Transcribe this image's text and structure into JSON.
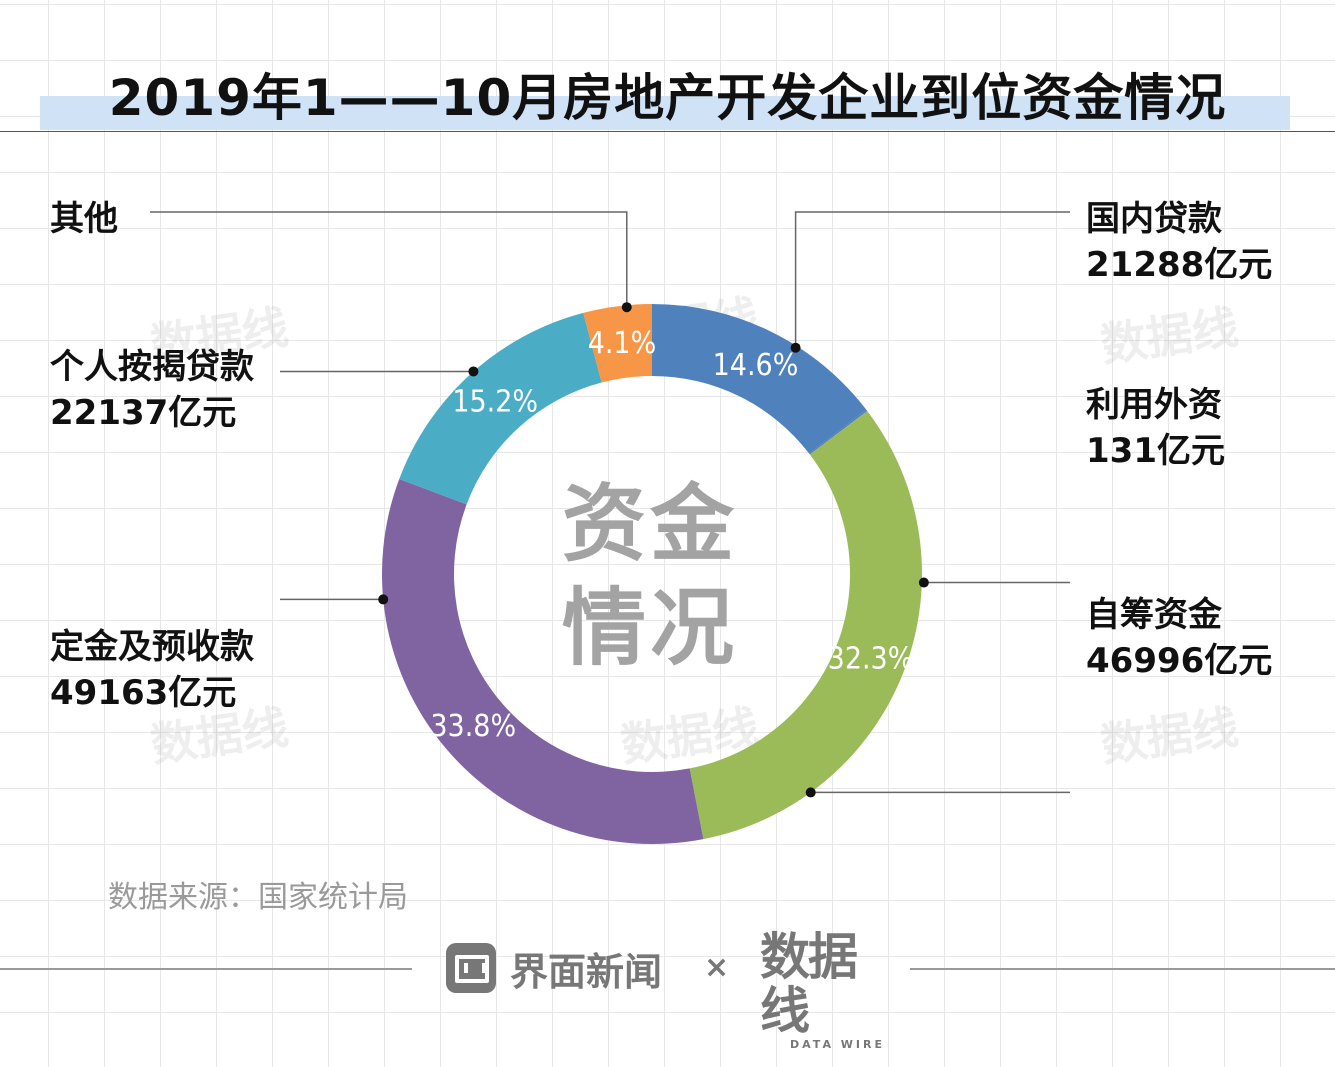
{
  "title": "2019年1——10月房地产开发企业到位资金情况",
  "center_label": [
    "资金",
    "情况"
  ],
  "source_text": "数据来源：国家统计局",
  "footer": {
    "brand_name": "界面新闻",
    "times_symbol": "×",
    "partner_logo_text": "数据线",
    "partner_logo_sub": "DATA WIRE"
  },
  "colors": {
    "domestic_loans": "#4f81bd",
    "foreign_investment": "#4f81bd",
    "self_raised": "#9bbb59",
    "deposits": "#8064a2",
    "mortgage": "#4bacc6",
    "other": "#f79646"
  },
  "chart_data": {
    "type": "pie",
    "style": "donut",
    "legend": "leader-lines",
    "slices": [
      {
        "key": "domestic_loans",
        "label": "国内贷款",
        "value_text": "21288亿元",
        "value": 21288,
        "percent_text": "14.6%",
        "percent": 14.6
      },
      {
        "key": "foreign_investment",
        "label": "利用外资",
        "value_text": "131亿元",
        "value": 131,
        "percent_text": "",
        "percent": 0.1
      },
      {
        "key": "self_raised",
        "label": "自筹资金",
        "value_text": "46996亿元",
        "value": 46996,
        "percent_text": "32.3%",
        "percent": 32.3
      },
      {
        "key": "deposits",
        "label": "定金及预收款",
        "value_text": "49163亿元",
        "value": 49163,
        "percent_text": "33.8%",
        "percent": 33.8
      },
      {
        "key": "mortgage",
        "label": "个人按揭贷款",
        "value_text": "22137亿元",
        "value": 22137,
        "percent_text": "15.2%",
        "percent": 15.2
      },
      {
        "key": "other",
        "label": "其他",
        "value_text": "",
        "value": null,
        "percent_text": "4.1%",
        "percent": 4.1
      }
    ]
  }
}
